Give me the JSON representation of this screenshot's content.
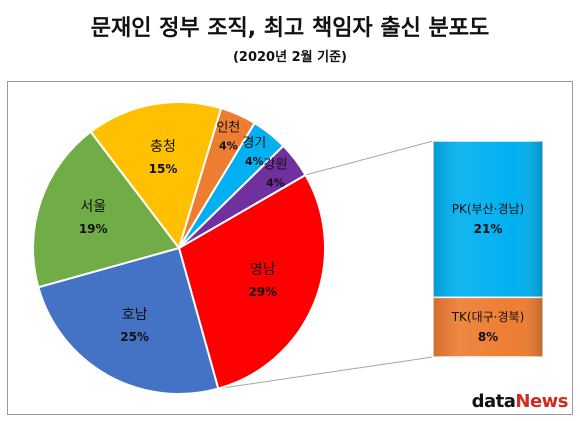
{
  "header": {
    "title": "문재인 정부 조직, 최고 책임자 출신 분포도",
    "subtitle": "(2020년 2월 기준)"
  },
  "chart_data": {
    "type": "pie",
    "slices": [
      {
        "label": "영남",
        "value": 29,
        "value_text": "29%",
        "color": "#ff0000"
      },
      {
        "label": "호남",
        "value": 25,
        "value_text": "25%",
        "color": "#4472c4"
      },
      {
        "label": "서울",
        "value": 19,
        "value_text": "19%",
        "color": "#70ad47"
      },
      {
        "label": "충청",
        "value": 15,
        "value_text": "15%",
        "color": "#ffc000"
      },
      {
        "label": "인천",
        "value": 4,
        "value_text": "4%",
        "color": "#ed7d31"
      },
      {
        "label": "경기",
        "value": 4,
        "value_text": "4%",
        "color": "#00b0f0"
      },
      {
        "label": "강원",
        "value": 4,
        "value_text": "4%",
        "color": "#7030a0"
      }
    ],
    "breakdown_of": "영남",
    "breakdown": [
      {
        "label": "PK(부산·경남)",
        "value": 21,
        "value_text": "21%",
        "color": "#00b0f0"
      },
      {
        "label": "TK(대구·경북)",
        "value": 8,
        "value_text": "8%",
        "color": "#ed7d31"
      }
    ]
  },
  "logo": {
    "part1": "data",
    "part2": "News"
  }
}
